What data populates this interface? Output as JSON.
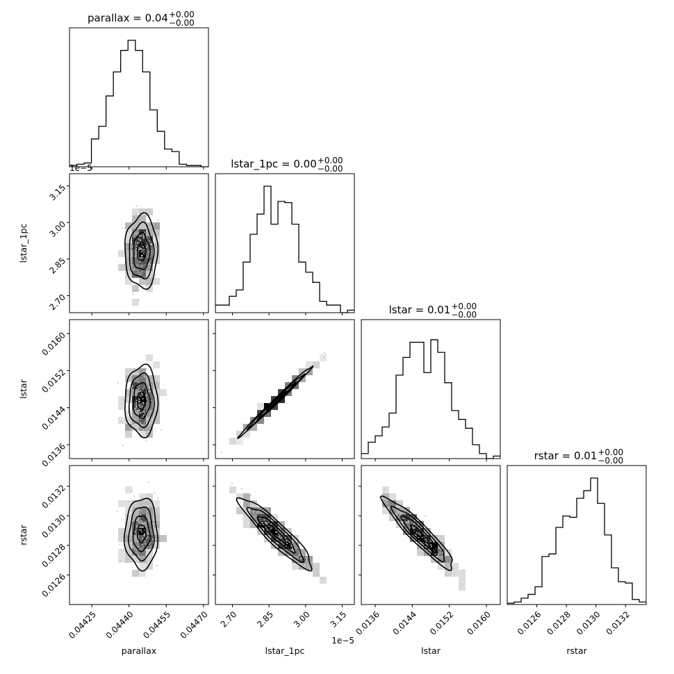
{
  "chart_data": {
    "type": "corner",
    "parameters": [
      {
        "name": "parallax",
        "xlabel": "parallax",
        "ylabel": "",
        "title": {
          "base": "parallax = 0.04",
          "sup": "+0.00",
          "sub": "−0.00"
        },
        "range": [
          0.04416,
          0.04472
        ],
        "ticks": [
          "0.04425",
          "0.04440",
          "0.04455",
          "0.04470"
        ],
        "tick_values": [
          0.04425,
          0.0444,
          0.04455,
          0.0447
        ],
        "offset": "",
        "mean": 0.04445,
        "sd": 3.3e-05
      },
      {
        "name": "lstar_1pc",
        "xlabel": "lstar_1pc",
        "ylabel": "lstar_1pc",
        "title": {
          "base": "lstar_1pc = 0.00",
          "sup": "+0.00",
          "sub": "−0.00"
        },
        "range": [
          2.63,
          3.2
        ],
        "ticks": [
          "2.70",
          "2.85",
          "3.00",
          "3.15"
        ],
        "tick_values": [
          2.7,
          2.85,
          3.0,
          3.15
        ],
        "offset": "1e−5",
        "mean": 2.88,
        "sd": 0.075
      },
      {
        "name": "lstar",
        "xlabel": "lstar",
        "ylabel": "lstar",
        "title": {
          "base": "lstar = 0.01",
          "sup": "+0.00",
          "sub": "−0.00"
        },
        "range": [
          0.0133,
          0.0163
        ],
        "ticks": [
          "0.0136",
          "0.0144",
          "0.0152",
          "0.0160"
        ],
        "tick_values": [
          0.0136,
          0.0144,
          0.0152,
          0.016
        ],
        "offset": "",
        "mean": 0.01455,
        "sd": 0.00038
      },
      {
        "name": "rstar",
        "xlabel": "rstar",
        "ylabel": "rstar",
        "title": {
          "base": "rstar = 0.01",
          "sup": "+0.00",
          "sub": "−0.00"
        },
        "range": [
          0.0124,
          0.01334
        ],
        "ticks": [
          "0.0126",
          "0.0128",
          "0.0130",
          "0.0132"
        ],
        "tick_values": [
          0.0126,
          0.0128,
          0.013,
          0.0132
        ],
        "offset": "",
        "mean": 0.01288,
        "sd": 0.00012
      }
    ],
    "histograms": {
      "parallax": [
        0.01,
        0.02,
        0.03,
        0.22,
        0.32,
        0.56,
        0.75,
        0.92,
        1.0,
        0.92,
        0.75,
        0.45,
        0.28,
        0.14,
        0.12,
        0.02,
        0.01,
        0.01,
        0.0
      ],
      "lstar_1pc": [
        0.06,
        0.06,
        0.13,
        0.18,
        0.4,
        0.62,
        0.78,
        1.0,
        0.7,
        0.88,
        0.87,
        0.7,
        0.4,
        0.32,
        0.24,
        0.09,
        0.06,
        0.06,
        0.0,
        0.02
      ],
      "lstar": [
        0.04,
        0.13,
        0.18,
        0.25,
        0.36,
        0.66,
        0.8,
        0.92,
        0.92,
        0.68,
        0.94,
        0.84,
        0.6,
        0.38,
        0.31,
        0.24,
        0.11,
        0.04,
        0.0,
        0.02
      ],
      "rstar": [
        0.01,
        0.02,
        0.05,
        0.08,
        0.14,
        0.38,
        0.4,
        0.61,
        0.7,
        0.69,
        0.84,
        0.9,
        1.0,
        0.8,
        0.55,
        0.29,
        0.18,
        0.17,
        0.04,
        0.02
      ]
    },
    "correlations": {
      "lstar_1pc__parallax": 0.0,
      "lstar__parallax": 0.0,
      "lstar__lstar_1pc": 0.995,
      "rstar__parallax": 0.0,
      "rstar__lstar_1pc": -0.92,
      "rstar__lstar": -0.93
    },
    "grid": false,
    "legend": "none"
  }
}
